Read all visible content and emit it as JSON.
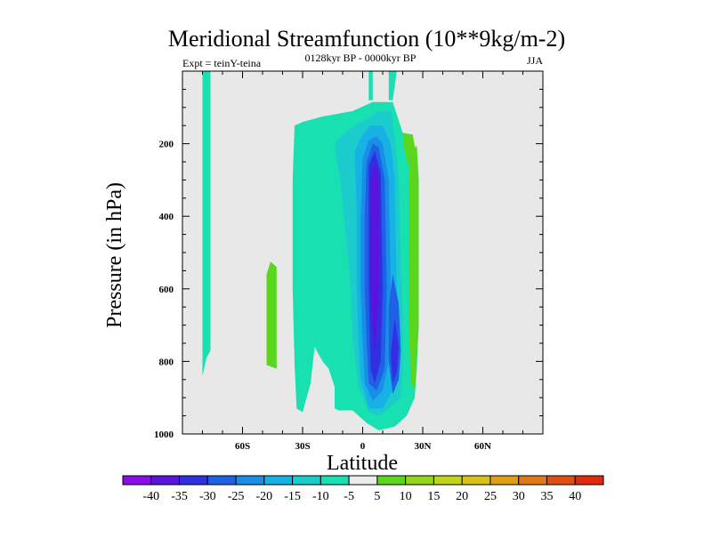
{
  "chart_data": {
    "type": "contour",
    "title": "Meridional Streamfunction (10**9kg/m-2)",
    "left_subtitle": "Expt = teinY-teina",
    "center_subtitle": "0128kyr BP - 0000kyr BP",
    "right_subtitle": "JJA",
    "xlabel": "Latitude",
    "ylabel": "Pressure (in hPa)",
    "xlim": [
      -90,
      90
    ],
    "ylim": [
      1000,
      0
    ],
    "x_ticks": [
      {
        "value": -60,
        "label": "60S"
      },
      {
        "value": -30,
        "label": "30S"
      },
      {
        "value": 0,
        "label": "0"
      },
      {
        "value": 30,
        "label": "30N"
      },
      {
        "value": 60,
        "label": "60N"
      }
    ],
    "y_ticks": [
      {
        "value": 200,
        "label": "200"
      },
      {
        "value": 400,
        "label": "400"
      },
      {
        "value": 600,
        "label": "600"
      },
      {
        "value": 800,
        "label": "800"
      },
      {
        "value": 1000,
        "label": "1000"
      }
    ],
    "background_color": "#e8e8e8",
    "colorbar": {
      "labels": [
        "-40",
        "-35",
        "-30",
        "-25",
        "-20",
        "-15",
        "-10",
        "-5",
        "5",
        "10",
        "15",
        "20",
        "25",
        "30",
        "35",
        "40"
      ],
      "colors": [
        "#8a0ce8",
        "#5a12dc",
        "#3030e0",
        "#1e60e6",
        "#1a8ee6",
        "#16b2e6",
        "#1ccccc",
        "#18e0b0",
        "#ececec",
        "#5ad61e",
        "#94d61a",
        "#c0d418",
        "#d8c218",
        "#e0a016",
        "#e27814",
        "#e24e12",
        "#e02a10"
      ]
    },
    "regions": [
      {
        "name": "contour-fill-far-south-strip",
        "level": "-5",
        "points": [
          [
            -80,
            0
          ],
          [
            -76,
            0
          ],
          [
            -76,
            770
          ],
          [
            -78,
            790
          ],
          [
            -80,
            840
          ]
        ]
      },
      {
        "name": "contour-fill-south-positive-cell",
        "level": "5",
        "points": [
          [
            -46,
            525
          ],
          [
            -43,
            540
          ],
          [
            -43,
            820
          ],
          [
            -48,
            810
          ],
          [
            -48,
            560
          ]
        ]
      },
      {
        "name": "contour-fill-upper-tropics-strip",
        "level": "-5",
        "points": [
          [
            3,
            0
          ],
          [
            5,
            0
          ],
          [
            5,
            80
          ],
          [
            3,
            80
          ]
        ]
      },
      {
        "name": "contour-fill-upper-north-strip",
        "level": "-5",
        "points": [
          [
            13,
            0
          ],
          [
            17,
            0
          ],
          [
            15,
            80
          ],
          [
            13,
            80
          ]
        ]
      },
      {
        "name": "contour-fill-main-outer",
        "level": "-5",
        "points": [
          [
            -30,
            140
          ],
          [
            -20,
            125
          ],
          [
            -5,
            110
          ],
          [
            5,
            85
          ],
          [
            15,
            85
          ],
          [
            20,
            170
          ],
          [
            27,
            240
          ],
          [
            27,
            500
          ],
          [
            28,
            700
          ],
          [
            27,
            820
          ],
          [
            26,
            900
          ],
          [
            22,
            950
          ],
          [
            16,
            980
          ],
          [
            8,
            990
          ],
          [
            2,
            970
          ],
          [
            -5,
            935
          ],
          [
            -12,
            935
          ],
          [
            -14,
            930
          ],
          [
            -14,
            870
          ],
          [
            -17,
            820
          ],
          [
            -20,
            800
          ],
          [
            -24,
            760
          ],
          [
            -26,
            860
          ],
          [
            -30,
            940
          ],
          [
            -33,
            930
          ],
          [
            -34,
            810
          ],
          [
            -35,
            600
          ],
          [
            -35,
            300
          ],
          [
            -34,
            150
          ]
        ]
      },
      {
        "name": "contour-fill-main-cell-10",
        "level": "-10",
        "points": [
          [
            -14,
            200
          ],
          [
            -10,
            175
          ],
          [
            -3,
            145
          ],
          [
            3,
            130
          ],
          [
            8,
            110
          ],
          [
            14,
            110
          ],
          [
            16,
            180
          ],
          [
            18,
            300
          ],
          [
            19,
            500
          ],
          [
            20,
            660
          ],
          [
            20,
            820
          ],
          [
            19,
            900
          ],
          [
            15,
            920
          ],
          [
            8,
            950
          ],
          [
            3,
            940
          ],
          [
            -2,
            870
          ],
          [
            -5,
            740
          ],
          [
            -6,
            600
          ],
          [
            -8,
            480
          ],
          [
            -10,
            360
          ],
          [
            -12,
            270
          ]
        ]
      },
      {
        "name": "contour-fill-main-cell-15",
        "level": "-15",
        "points": [
          [
            -4,
            220
          ],
          [
            0,
            175
          ],
          [
            4,
            150
          ],
          [
            10,
            150
          ],
          [
            14,
            200
          ],
          [
            16,
            300
          ],
          [
            17,
            600
          ],
          [
            17,
            800
          ],
          [
            15,
            880
          ],
          [
            10,
            930
          ],
          [
            3,
            930
          ],
          [
            -1,
            850
          ],
          [
            -2,
            750
          ],
          [
            -3,
            600
          ],
          [
            -3,
            400
          ]
        ]
      },
      {
        "name": "contour-fill-main-cell-20",
        "level": "-20",
        "points": [
          [
            0,
            240
          ],
          [
            3,
            190
          ],
          [
            7,
            180
          ],
          [
            10,
            200
          ],
          [
            13,
            300
          ],
          [
            14,
            600
          ],
          [
            13,
            800
          ],
          [
            10,
            880
          ],
          [
            5,
            910
          ],
          [
            1,
            860
          ],
          [
            0,
            750
          ],
          [
            -1,
            600
          ],
          [
            -1,
            400
          ]
        ]
      },
      {
        "name": "contour-fill-main-cell-25",
        "level": "-25",
        "points": [
          [
            2,
            250
          ],
          [
            5,
            200
          ],
          [
            8,
            210
          ],
          [
            11,
            300
          ],
          [
            12,
            600
          ],
          [
            11,
            820
          ],
          [
            7,
            880
          ],
          [
            3,
            860
          ],
          [
            2,
            750
          ],
          [
            1,
            600
          ],
          [
            1,
            400
          ]
        ]
      },
      {
        "name": "contour-fill-main-cell-30",
        "level": "-30",
        "points": [
          [
            3,
            260
          ],
          [
            6,
            220
          ],
          [
            9,
            280
          ],
          [
            10,
            600
          ],
          [
            9,
            800
          ],
          [
            6,
            860
          ],
          [
            4,
            820
          ],
          [
            3,
            600
          ]
        ]
      },
      {
        "name": "contour-fill-main-cell-35",
        "level": "-35",
        "points": [
          [
            4,
            300
          ],
          [
            6,
            250
          ],
          [
            8,
            300
          ],
          [
            8,
            620
          ],
          [
            6,
            780
          ],
          [
            5,
            700
          ],
          [
            4,
            600
          ]
        ]
      },
      {
        "name": "contour-fill-lower-cell-25",
        "level": "-25",
        "points": [
          [
            15,
            560
          ],
          [
            18,
            640
          ],
          [
            19,
            770
          ],
          [
            18,
            850
          ],
          [
            15,
            890
          ],
          [
            13,
            800
          ],
          [
            13,
            650
          ]
        ]
      },
      {
        "name": "contour-fill-lower-cell-30",
        "level": "-30",
        "points": [
          [
            16,
            680
          ],
          [
            18,
            760
          ],
          [
            17,
            830
          ],
          [
            15,
            860
          ],
          [
            14,
            780
          ]
        ]
      },
      {
        "name": "contour-fill-inner-gap-north",
        "level": "5",
        "points": [
          [
            20,
            170
          ],
          [
            25,
            175
          ],
          [
            27,
            240
          ],
          [
            23,
            260
          ],
          [
            21,
            220
          ]
        ]
      },
      {
        "name": "contour-fill-north-positive-cell",
        "level": "5",
        "points": [
          [
            23,
            230
          ],
          [
            27,
            205
          ],
          [
            28,
            300
          ],
          [
            28,
            700
          ],
          [
            26,
            880
          ],
          [
            24,
            860
          ],
          [
            23,
            700
          ],
          [
            23,
            400
          ]
        ]
      }
    ]
  }
}
